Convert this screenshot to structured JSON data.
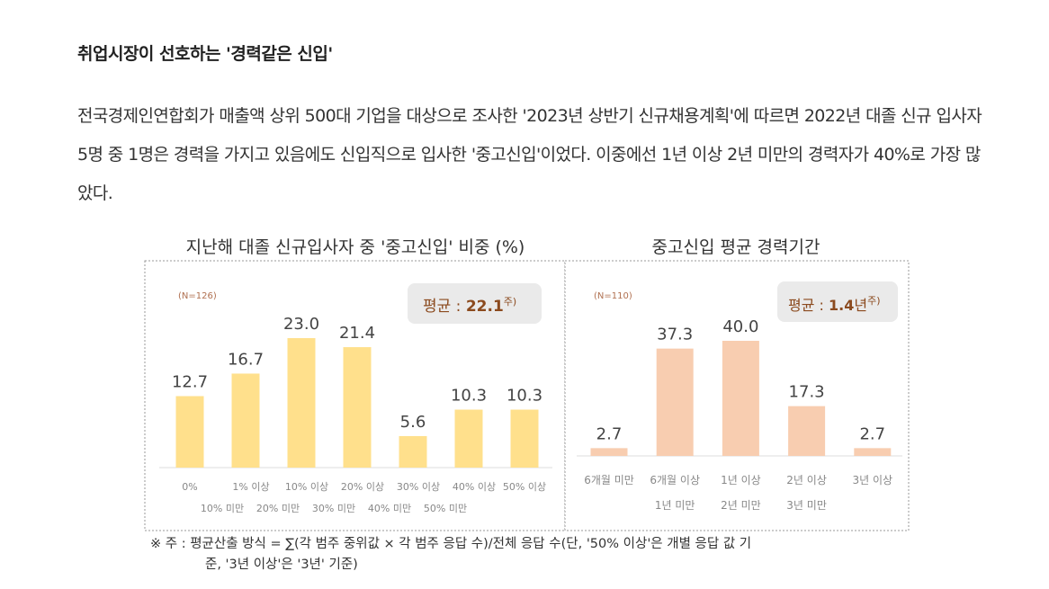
{
  "article": {
    "heading": "취업시장이 선호하는 '경력같은 신입'",
    "paragraph": "전국경제인연합회가 매출액 상위 500대 기업을 대상으로 조사한 '2023년 상반기 신규채용계획'에 따르면 2022년 대졸 신규 입사자 5명 중 1명은 경력을 가지고 있음에도 신입직으로 입사한 '중고신입'이었다. 이중에선 1년 이상 2년 미만의 경력자가 40%로 가장 많았다."
  },
  "colors": {
    "left_bar": "#FFE08C",
    "right_bar": "#F8CDB0",
    "badge_bg": "#EAEAEA",
    "badge_text": "#8B4A1E",
    "n_text": "#B07050"
  },
  "chart_data": [
    {
      "type": "bar",
      "title": "지난해 대졸 신규입사자 중 '중고신입' 비중 (%)",
      "n_label": "(N=126)",
      "badge": {
        "prefix": "평균 : ",
        "value": "22.1",
        "suffix": "",
        "note": "주)"
      },
      "categories": [
        [
          "0%",
          ""
        ],
        [
          "1% 이상",
          "10% 미만"
        ],
        [
          "10% 이상",
          "20% 미만"
        ],
        [
          "20% 이상",
          "30% 미만"
        ],
        [
          "30% 이상",
          "40% 미만"
        ],
        [
          "40% 이상",
          "50% 미만"
        ],
        [
          "50% 이상",
          ""
        ]
      ],
      "values": [
        12.7,
        16.7,
        23.0,
        21.4,
        5.6,
        10.3,
        10.3
      ],
      "value_labels": [
        "12.7",
        "16.7",
        "23.0",
        "21.4",
        "5.6",
        "10.3",
        "10.3"
      ],
      "ylim": [
        0,
        25
      ]
    },
    {
      "type": "bar",
      "title": "중고신입 평균 경력기간",
      "n_label": "(N=110)",
      "badge": {
        "prefix": "평균 : ",
        "value": "1.4",
        "suffix": "년",
        "note": "주)"
      },
      "categories": [
        [
          "6개월 미만",
          ""
        ],
        [
          "6개월 이상",
          "1년 미만"
        ],
        [
          "1년 이상",
          "2년 미만"
        ],
        [
          "2년 이상",
          "3년 미만"
        ],
        [
          "3년 이상",
          ""
        ]
      ],
      "values": [
        2.7,
        37.3,
        40.0,
        17.3,
        2.7
      ],
      "value_labels": [
        "2.7",
        "37.3",
        "40.0",
        "17.3",
        "2.7"
      ],
      "ylim": [
        0,
        45
      ]
    }
  ],
  "footnote": {
    "line1": "※ 주 : 평균산출 방식 = ∑(각 범주 중위값 × 각 범주 응답 수)/전체 응답 수(단, '50% 이상'은 개별 응답 값 기",
    "line2": "준, '3년 이상'은 '3년' 기준)"
  }
}
